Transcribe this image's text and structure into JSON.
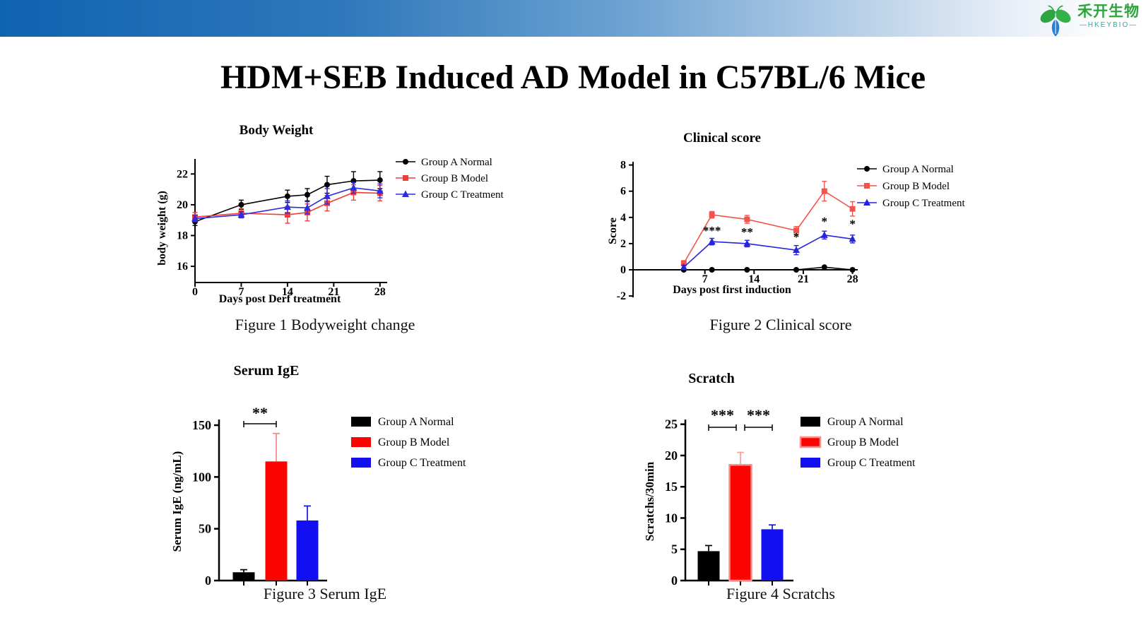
{
  "header": {
    "logo_cn": "禾开生物",
    "logo_en": "—HKEYBIO—"
  },
  "title": "HDM+SEB Induced AD Model in C57BL/6 Mice",
  "legend_labels": [
    "Group A Normal",
    "Group B Model",
    "Group C Treatment"
  ],
  "colors": {
    "group_a": "#000000",
    "group_b_line": "#ee3e38",
    "group_c_line": "#2d2ddd",
    "bar_red": "#fb0500",
    "bar_blue": "#1210f0"
  },
  "chart_data": [
    {
      "id": "bodyweight",
      "type": "line",
      "title": "Body Weight",
      "xlabel": "Days post Derf treatment",
      "ylabel": "body weight (g)",
      "x": [
        0,
        7,
        14,
        17,
        20,
        24,
        28
      ],
      "xticks": [
        0,
        7,
        14,
        21,
        28
      ],
      "yticks": [
        16,
        18,
        20,
        22
      ],
      "xlim": [
        0,
        29
      ],
      "ylim": [
        14.9,
        23
      ],
      "series": [
        {
          "name": "Group A Normal",
          "marker": "circle",
          "color": "#000000",
          "values": [
            18.9,
            20.0,
            20.55,
            20.65,
            21.3,
            21.55,
            21.6
          ],
          "err": [
            0.25,
            0.3,
            0.4,
            0.4,
            0.55,
            0.6,
            0.55
          ]
        },
        {
          "name": "Group B Model",
          "marker": "square",
          "color": "#ee3e38",
          "values": [
            19.2,
            19.45,
            19.35,
            19.5,
            20.1,
            20.8,
            20.75
          ],
          "err": [
            0.3,
            0.3,
            0.55,
            0.55,
            0.5,
            0.5,
            0.5
          ]
        },
        {
          "name": "Group C Treatment",
          "marker": "triangle",
          "color": "#2d2ddd",
          "values": [
            19.1,
            19.35,
            19.85,
            19.8,
            20.55,
            21.1,
            20.9
          ],
          "err": [
            0.2,
            0.2,
            0.4,
            0.4,
            0.5,
            0.35,
            0.45
          ]
        }
      ],
      "caption": "Figure 1 Bodyweight change"
    },
    {
      "id": "clinical",
      "type": "line",
      "title": "Clinical score",
      "xlabel": "Days post first induction",
      "ylabel": "Score",
      "x": [
        4,
        8,
        13,
        20,
        24,
        28
      ],
      "xticks": [
        7,
        14,
        21,
        28
      ],
      "yticks": [
        -2,
        0,
        2,
        4,
        6,
        8
      ],
      "xlim": [
        0,
        29
      ],
      "ylim": [
        -2,
        8
      ],
      "series": [
        {
          "name": "Group A Normal",
          "marker": "circle",
          "color": "#000000",
          "values": [
            0,
            0,
            0,
            0,
            0.2,
            0
          ],
          "err": [
            0,
            0,
            0,
            0,
            0,
            0
          ]
        },
        {
          "name": "Group B Model",
          "marker": "square",
          "color": "#f4534d",
          "values": [
            0.5,
            4.2,
            3.85,
            3.0,
            6.0,
            4.65
          ],
          "err": [
            0.2,
            0.25,
            0.3,
            0.3,
            0.75,
            0.55
          ]
        },
        {
          "name": "Group C Treatment",
          "marker": "triangle",
          "color": "#2424dc",
          "values": [
            0.2,
            2.15,
            2.0,
            1.5,
            2.65,
            2.35
          ],
          "err": [
            0.15,
            0.25,
            0.25,
            0.35,
            0.3,
            0.3
          ]
        }
      ],
      "annotations": [
        {
          "x": 8,
          "y": 2.7,
          "text": "***"
        },
        {
          "x": 13,
          "y": 2.6,
          "text": "**"
        },
        {
          "x": 20,
          "y": 2.2,
          "text": "*"
        },
        {
          "x": 24,
          "y": 3.4,
          "text": "*"
        },
        {
          "x": 28,
          "y": 3.2,
          "text": "*"
        }
      ],
      "caption": "Figure 2 Clinical score"
    },
    {
      "id": "ige",
      "type": "bar",
      "title": "Serum IgE",
      "ylabel": "Serum IgE (ng/mL)",
      "categories": [
        "Group A Normal",
        "Group B Model",
        "Group C Treatment"
      ],
      "values": [
        8,
        115,
        58
      ],
      "errors": [
        2.5,
        27,
        14
      ],
      "colors": [
        "#000000",
        "#fb0500",
        "#1210f0"
      ],
      "err_colors": [
        "#000000",
        "#f8837e",
        "#1210f0"
      ],
      "edges": [
        null,
        null,
        null
      ],
      "yticks": [
        0,
        50,
        100,
        150
      ],
      "ylim": [
        0,
        160
      ],
      "sig": [
        {
          "between": [
            0,
            1
          ],
          "label": "**"
        }
      ],
      "caption": "Figure 3 Serum IgE"
    },
    {
      "id": "scratch",
      "type": "bar",
      "title": "Scratch",
      "ylabel": "Scratchs/30min",
      "categories": [
        "Group A Normal",
        "Group B Model",
        "Group C Treatment"
      ],
      "values": [
        4.7,
        18.5,
        8.2
      ],
      "errors": [
        0.9,
        2.0,
        0.7
      ],
      "colors": [
        "#000000",
        "#fb0500",
        "#1210f0"
      ],
      "err_colors": [
        "#000000",
        "#fb9b97",
        "#1210f0"
      ],
      "edges": [
        null,
        "#fb8d8b",
        null
      ],
      "yticks": [
        0,
        5,
        10,
        15,
        20,
        25
      ],
      "ylim": [
        0,
        26
      ],
      "sig": [
        {
          "between": [
            0,
            1
          ],
          "label": "***"
        },
        {
          "between": [
            1,
            2
          ],
          "label": "***"
        }
      ],
      "caption": "Figure 4 Scratchs"
    }
  ]
}
